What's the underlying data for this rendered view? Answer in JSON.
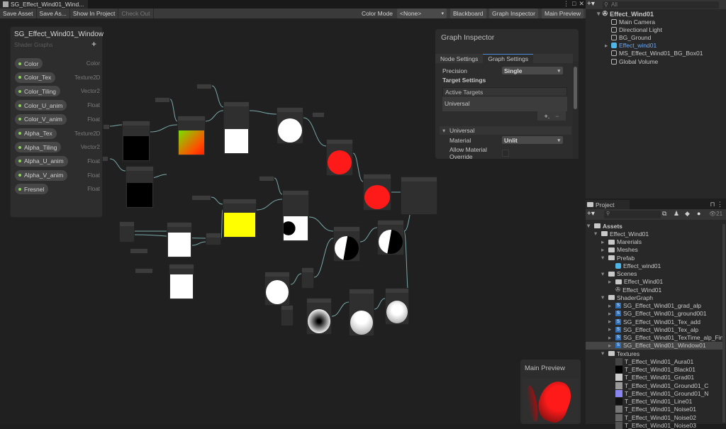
{
  "window": {
    "tab_title": "SG_Effect_Wind01_Wind...",
    "controls": [
      "⋮",
      "□",
      "✕"
    ]
  },
  "toolbar": {
    "save_asset": "Save Asset",
    "save_as": "Save As...",
    "show_in_project": "Show In Project",
    "check_out": "Check Out",
    "color_mode_label": "Color Mode",
    "color_mode_value": "<None>",
    "blackboard": "Blackboard",
    "graph_inspector": "Graph Inspector",
    "main_preview": "Main Preview"
  },
  "blackboard": {
    "title": "SG_Effect_Wind01_Window",
    "subtitle": "Shader Graphs",
    "add": "+",
    "properties": [
      {
        "name": "Color",
        "type": "Color"
      },
      {
        "name": "Color_Tex",
        "type": "Texture2D"
      },
      {
        "name": "Color_Tiling",
        "type": "Vector2"
      },
      {
        "name": "Color_U_anim",
        "type": "Float"
      },
      {
        "name": "Color_V_anim",
        "type": "Float"
      },
      {
        "name": "Alpha_Tex",
        "type": "Texture2D"
      },
      {
        "name": "Alpha_Tiling",
        "type": "Vector2"
      },
      {
        "name": "Alpha_U_anim",
        "type": "Float"
      },
      {
        "name": "Alpha_V_anim",
        "type": "Float"
      },
      {
        "name": "Fresnel",
        "type": "Float"
      }
    ]
  },
  "graph_inspector": {
    "title": "Graph Inspector",
    "tabs": [
      "Node Settings",
      "Graph Settings"
    ],
    "active_tab": "Graph Settings",
    "precision_label": "Precision",
    "precision_value": "Single",
    "target_settings": "Target Settings",
    "active_targets": "Active Targets",
    "target": "Universal",
    "add": "+.",
    "remove": "−",
    "section": "Universal",
    "material_label": "Material",
    "material_value": "Unlit",
    "allow_override": "Allow Material Override",
    "allow_override_checked": false
  },
  "main_preview": {
    "title": "Main Preview"
  },
  "hierarchy": {
    "search_placeholder": "All",
    "scene": "Effect_Wind01",
    "items": [
      "Main Camera",
      "Directional Light",
      "BG_Ground",
      "Effect_wind01",
      "MS_Effect_Wind01_BG_Box01",
      "Global Volume"
    ],
    "selected": "Effect_wind01"
  },
  "project": {
    "tab": "Project",
    "hidden_count": "21",
    "tree": [
      {
        "label": "Assets",
        "depth": 0,
        "kind": "folder-open",
        "bold": true
      },
      {
        "label": "Effect_Wind01",
        "depth": 1,
        "kind": "folder-open"
      },
      {
        "label": "Marerials",
        "depth": 2,
        "kind": "folder"
      },
      {
        "label": "Meshes",
        "depth": 2,
        "kind": "folder"
      },
      {
        "label": "Prefab",
        "depth": 2,
        "kind": "folder-open"
      },
      {
        "label": "Effect_wind01",
        "depth": 3,
        "kind": "prefab"
      },
      {
        "label": "Scenes",
        "depth": 2,
        "kind": "folder-open"
      },
      {
        "label": "Effect_Wind01",
        "depth": 3,
        "kind": "folder"
      },
      {
        "label": "Effect_Wind01",
        "depth": 3,
        "kind": "scene"
      },
      {
        "label": "ShaderGraph",
        "depth": 2,
        "kind": "folder-open"
      },
      {
        "label": "SG_Effect_Wind01_grad_alp",
        "depth": 3,
        "kind": "shadergraph"
      },
      {
        "label": "SG_Effect_Wind01_ground001",
        "depth": 3,
        "kind": "shadergraph"
      },
      {
        "label": "SG_Effect_Wind01_Tex_add",
        "depth": 3,
        "kind": "shadergraph"
      },
      {
        "label": "SG_Effect_Wind01_Tex_alp",
        "depth": 3,
        "kind": "shadergraph"
      },
      {
        "label": "SG_Effect_Wind01_TexTime_alp_Fin",
        "depth": 3,
        "kind": "shadergraph"
      },
      {
        "label": "SG_Effect_Wind01_Window01",
        "depth": 3,
        "kind": "shadergraph",
        "selected": true
      },
      {
        "label": "Textures",
        "depth": 2,
        "kind": "folder-open"
      },
      {
        "label": "T_Effect_Wind01_Aura01",
        "depth": 3,
        "kind": "texture",
        "color": "#444444"
      },
      {
        "label": "T_Effect_Wind01_Black01",
        "depth": 3,
        "kind": "texture",
        "color": "#000000"
      },
      {
        "label": "T_Effect_Wind01_Grad01",
        "depth": 3,
        "kind": "texture",
        "color": "#cccccc"
      },
      {
        "label": "T_Effect_Wind01_Ground01_C",
        "depth": 3,
        "kind": "texture",
        "color": "#9a9a9a"
      },
      {
        "label": "T_Effect_Wind01_Ground01_N",
        "depth": 3,
        "kind": "texture",
        "color": "#8a86f0"
      },
      {
        "label": "T_Effect_Wind01_Line01",
        "depth": 3,
        "kind": "texture",
        "color": "#111111"
      },
      {
        "label": "T_Effect_Wind01_Noise01",
        "depth": 3,
        "kind": "texture",
        "color": "#777777"
      },
      {
        "label": "T_Effect_Wind01_Noise02",
        "depth": 3,
        "kind": "texture",
        "color": "#666666"
      },
      {
        "label": "T_Effect_Wind01_Noise03",
        "depth": 3,
        "kind": "texture",
        "color": "#555555"
      }
    ]
  },
  "colors": {
    "accent": "#4a8ad8",
    "selected_text": "#6fa8f0",
    "property_dot": "#8bd45e",
    "preview_red": "#ff1a1a",
    "preview_yellow": "#ffff00"
  }
}
